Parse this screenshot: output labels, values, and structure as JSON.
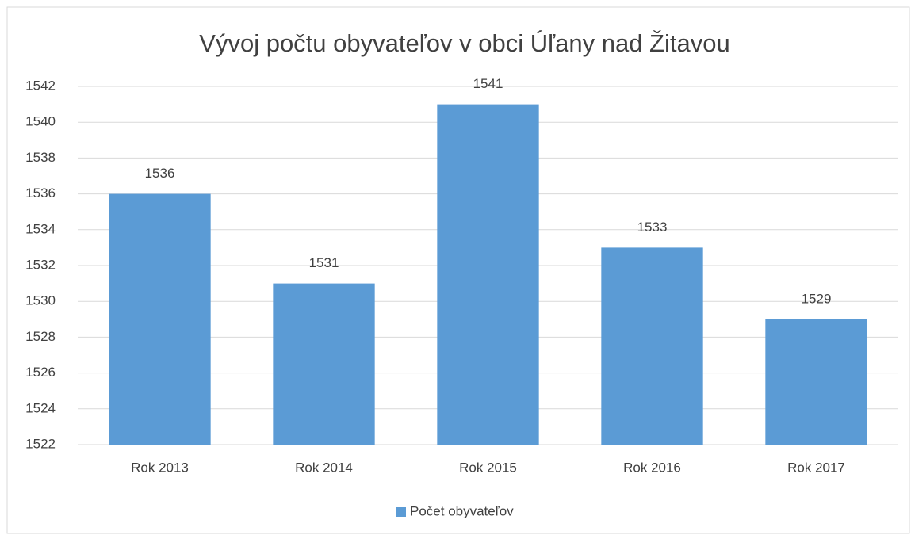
{
  "chart_data": {
    "type": "bar",
    "title": "Vývoj počtu obyvateľov v obci Úľany nad Žitavou",
    "categories": [
      "Rok 2013",
      "Rok 2014",
      "Rok 2015",
      "Rok 2016",
      "Rok 2017"
    ],
    "series": [
      {
        "name": "Počet obyvateľov",
        "color": "#5b9bd5",
        "values": [
          1536,
          1531,
          1541,
          1533,
          1529
        ]
      }
    ],
    "ylim": [
      1522,
      1542
    ],
    "yticks": [
      1522,
      1524,
      1526,
      1528,
      1530,
      1532,
      1534,
      1536,
      1538,
      1540,
      1542
    ],
    "grid": true,
    "legend": "bottom"
  }
}
